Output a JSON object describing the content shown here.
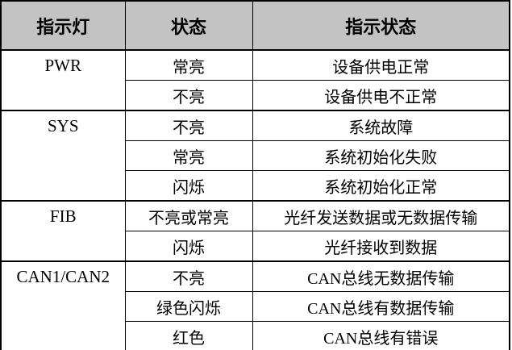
{
  "table": {
    "headers": [
      "指示灯",
      "状态",
      "指示状态"
    ],
    "sections": [
      {
        "led": "PWR",
        "rows": [
          [
            "常亮",
            "设备供电正常"
          ],
          [
            "不亮",
            "设备供电不正常"
          ]
        ]
      },
      {
        "led": "SYS",
        "rows": [
          [
            "不亮",
            "系统故障"
          ],
          [
            "常亮",
            "系统初始化失败"
          ],
          [
            "闪烁",
            "系统初始化正常"
          ]
        ]
      },
      {
        "led": "FIB",
        "rows": [
          [
            "不亮或常亮",
            "光纤发送数据或无数据传输"
          ],
          [
            "闪烁",
            "光纤接收到数据"
          ]
        ]
      },
      {
        "led": "CAN1/CAN2",
        "rows": [
          [
            "不亮",
            "CAN总线无数据传输"
          ],
          [
            "绿色闪烁",
            "CAN总线有数据传输"
          ],
          [
            "红色",
            "CAN总线有错误"
          ]
        ]
      }
    ]
  },
  "colors": {
    "header_bg": "#c3c3c3",
    "border": "#000000",
    "text": "#000000"
  }
}
